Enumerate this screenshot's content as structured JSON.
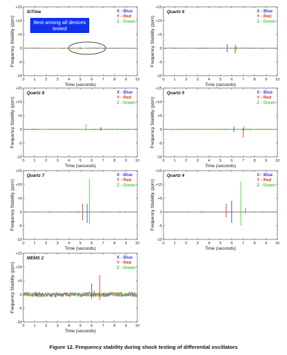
{
  "caption": "Figure 12. Frequency stability during shock testing of differential oscillators",
  "colors": {
    "x": "#3344dd",
    "y": "#dd3322",
    "z": "#44cc33",
    "callout_bg": "#1133ee",
    "axis": "#333333"
  },
  "chart_data": [
    {
      "type": "line",
      "title": "SiTime",
      "xlabel": "Time (seconds)",
      "ylabel": "Frequency Stability (ppm)",
      "xlim": [
        0,
        10
      ],
      "ylim": [
        -10,
        15
      ],
      "xticks": [
        "0",
        "1",
        "2",
        "3",
        "4",
        "5",
        "6",
        "7",
        "8",
        "9",
        "10"
      ],
      "yticks": [
        "+15",
        "+10",
        "+5",
        "0",
        "-5",
        "-10"
      ],
      "legend": [
        "X - Blue",
        "Y - Red",
        "Z - Green"
      ],
      "legend_position": "top-right",
      "annotation": "Best among all devices tested",
      "spikes": [
        {
          "axis": "y",
          "t": 5.0,
          "lo": -0.3,
          "hi": 0.4
        },
        {
          "axis": "z",
          "t": 6.2,
          "lo": -0.3,
          "hi": 0.3
        }
      ]
    },
    {
      "type": "line",
      "title": "Quartz 6",
      "xlabel": "Time (seconds)",
      "ylabel": "Frequency Stability (ppm)",
      "xlim": [
        0,
        10
      ],
      "ylim": [
        -10,
        15
      ],
      "xticks": [
        "0",
        "1",
        "2",
        "3",
        "4",
        "5",
        "6",
        "7",
        "8",
        "9",
        "10"
      ],
      "yticks": [
        "+15",
        "+10",
        "+5",
        "0",
        "-5",
        "-10"
      ],
      "legend": [
        "X - Blue",
        "Y - Red",
        "Z - Green"
      ],
      "legend_position": "top-right",
      "spikes": [
        {
          "axis": "x",
          "t": 5.6,
          "lo": -1.5,
          "hi": 1.5
        },
        {
          "axis": "y",
          "t": 6.3,
          "lo": -2.0,
          "hi": 1.2
        },
        {
          "axis": "z",
          "t": 6.4,
          "lo": -0.8,
          "hi": 0.8
        }
      ]
    },
    {
      "type": "line",
      "title": "Quartz 8",
      "xlabel": "Time (seconds)",
      "ylabel": "Frequency Stability (ppm)",
      "xlim": [
        0,
        10
      ],
      "ylim": [
        -10,
        15
      ],
      "xticks": [
        "0",
        "1",
        "2",
        "3",
        "4",
        "5",
        "6",
        "7",
        "8",
        "9",
        "10"
      ],
      "yticks": [
        "+15",
        "+10",
        "+5",
        "0",
        "-5",
        "-10"
      ],
      "legend": [
        "X - Blue",
        "Y - Red",
        "Z - Green"
      ],
      "legend_position": "top-right",
      "spikes": [
        {
          "axis": "z",
          "t": 5.5,
          "lo": -0.5,
          "hi": 1.8
        },
        {
          "axis": "x",
          "t": 6.8,
          "lo": -0.5,
          "hi": 0.8
        },
        {
          "axis": "y",
          "t": 6.8,
          "lo": -0.4,
          "hi": 0.6
        }
      ]
    },
    {
      "type": "line",
      "title": "Quartz 5",
      "xlabel": "Time (seconds)",
      "ylabel": "Frequency Stability (ppm)",
      "xlim": [
        0,
        10
      ],
      "ylim": [
        -10,
        15
      ],
      "xticks": [
        "0",
        "1",
        "2",
        "3",
        "4",
        "5",
        "6",
        "7",
        "8",
        "9",
        "10"
      ],
      "yticks": [
        "+15",
        "+10",
        "+5",
        "0",
        "-5",
        "-10"
      ],
      "legend": [
        "X - Blue",
        "Y - Red",
        "Z - Green"
      ],
      "legend_position": "top-right",
      "spikes": [
        {
          "axis": "x",
          "t": 6.2,
          "lo": -1.0,
          "hi": 1.0
        },
        {
          "axis": "y",
          "t": 7.0,
          "lo": -3.0,
          "hi": 0.5
        },
        {
          "axis": "z",
          "t": 7.1,
          "lo": -0.5,
          "hi": 1.2
        }
      ]
    },
    {
      "type": "line",
      "title": "Quartz 7",
      "xlabel": "Time (seconds)",
      "ylabel": "Frequency Stability (ppm)",
      "xlim": [
        0,
        10
      ],
      "ylim": [
        -10,
        15
      ],
      "xticks": [
        "0",
        "1",
        "2",
        "3",
        "4",
        "5",
        "6",
        "7",
        "8",
        "9",
        "10"
      ],
      "yticks": [
        "+15",
        "+10",
        "+5",
        "0",
        "-5",
        "-10"
      ],
      "legend": [
        "X - Blue",
        "Y - Red",
        "Z - Green"
      ],
      "legend_position": "top-right",
      "spikes": [
        {
          "axis": "y",
          "t": 5.2,
          "lo": -3.0,
          "hi": 3.0
        },
        {
          "axis": "x",
          "t": 5.6,
          "lo": -4.0,
          "hi": 3.0
        },
        {
          "axis": "z",
          "t": 5.8,
          "lo": -4.5,
          "hi": 12.0
        }
      ]
    },
    {
      "type": "line",
      "title": "Quartz 4",
      "xlabel": "Time (seconds)",
      "ylabel": "Frequency Stability (ppm)",
      "xlim": [
        0,
        10
      ],
      "ylim": [
        -10,
        15
      ],
      "xticks": [
        "0",
        "1",
        "2",
        "3",
        "4",
        "5",
        "6",
        "7",
        "8",
        "9",
        "10"
      ],
      "yticks": [
        "+15",
        "+10",
        "+5",
        "0",
        "-5",
        "-10"
      ],
      "legend": [
        "X - Blue",
        "Y - Red",
        "Z - Green"
      ],
      "legend_position": "top-right",
      "spikes": [
        {
          "axis": "y",
          "t": 5.5,
          "lo": -2.0,
          "hi": 3.0
        },
        {
          "axis": "x",
          "t": 6.0,
          "lo": -4.0,
          "hi": 4.0
        },
        {
          "axis": "z",
          "t": 6.8,
          "lo": -5.0,
          "hi": 11.0
        },
        {
          "axis": "z",
          "t": 7.2,
          "lo": -0.5,
          "hi": 1.5
        }
      ]
    },
    {
      "type": "line",
      "title": "MEMS 2",
      "xlabel": "Time (seconds)",
      "ylabel": "Frequency Stability (ppm)",
      "xlim": [
        0,
        10
      ],
      "ylim": [
        -10,
        15
      ],
      "xticks": [
        "0",
        "1",
        "2",
        "3",
        "4",
        "5",
        "6",
        "7",
        "8",
        "9",
        "10"
      ],
      "yticks": [
        "+15",
        "+10",
        "+5",
        "0",
        "-5",
        "-10"
      ],
      "legend": [
        "X - Blue",
        "Y - Red",
        "Z - Green"
      ],
      "legend_position": "top-right",
      "noise_amplitude": 0.8,
      "spikes": [
        {
          "axis": "x",
          "t": 6.0,
          "lo": -1.5,
          "hi": 4.0
        },
        {
          "axis": "y",
          "t": 6.7,
          "lo": -2.0,
          "hi": 7.0
        },
        {
          "axis": "z",
          "t": 6.2,
          "lo": -1.0,
          "hi": 1.5
        }
      ]
    }
  ]
}
